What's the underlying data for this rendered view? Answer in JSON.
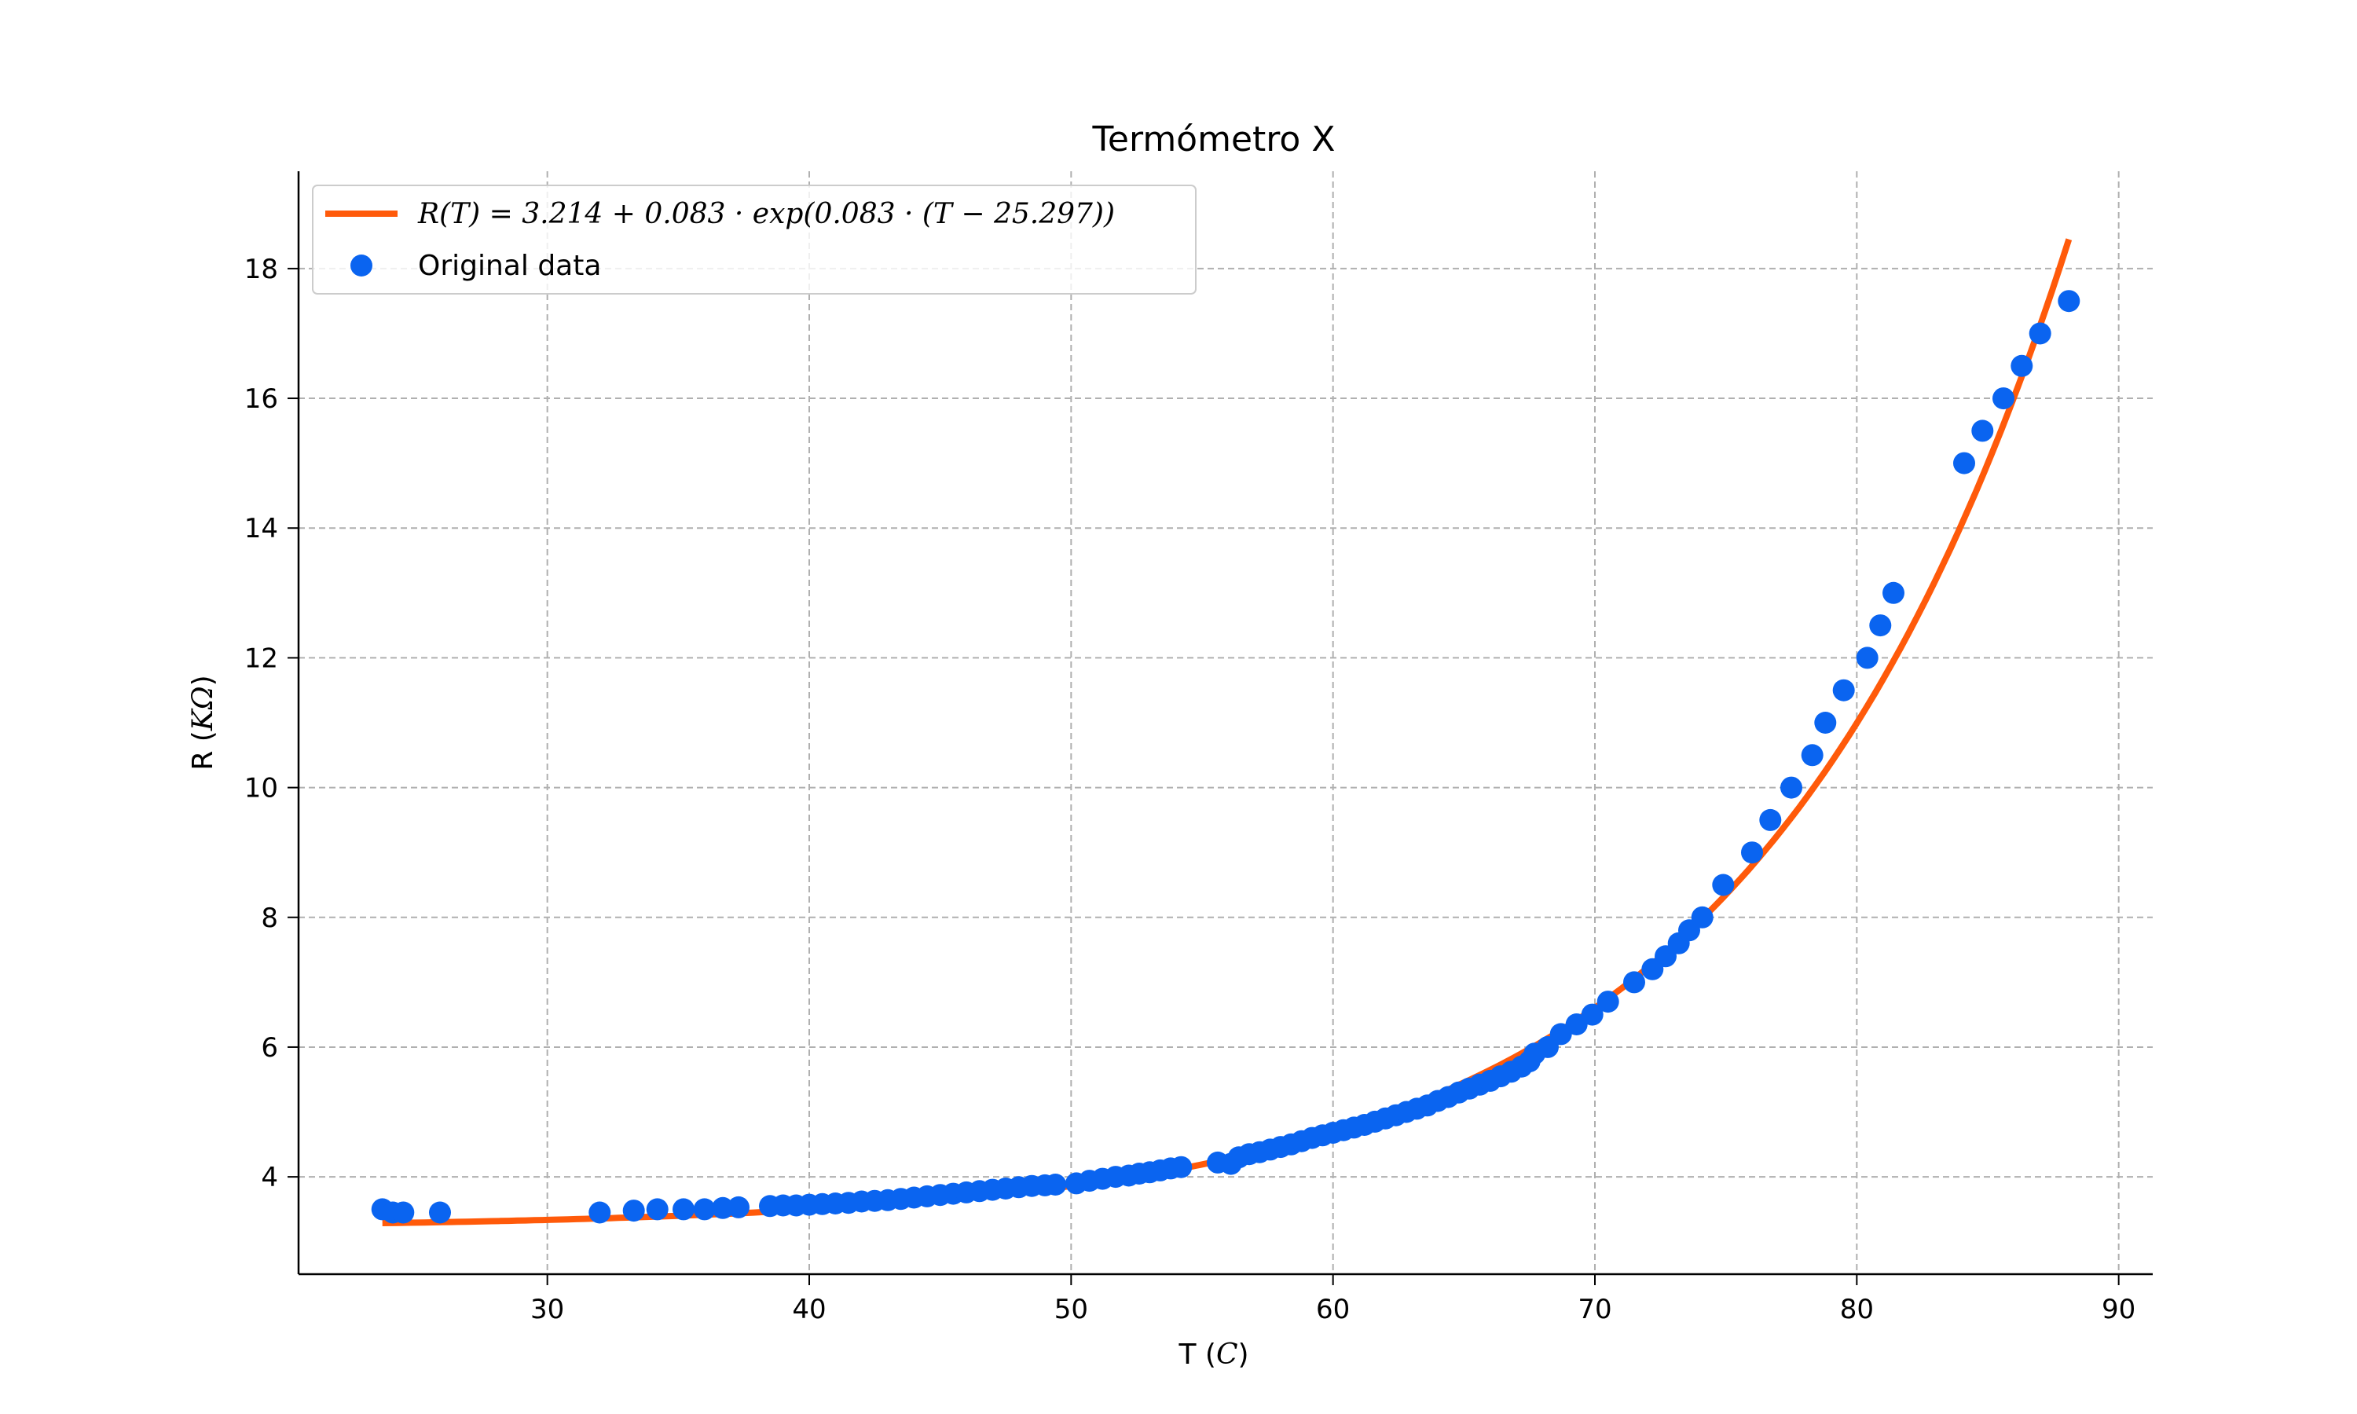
{
  "chart_data": {
    "type": "scatter",
    "title": "Termómetro X",
    "xlabel_text": "T (",
    "xlabel_unit": "C",
    "xlabel_close": ")",
    "ylabel_text": "R (",
    "ylabel_unit": "KΩ",
    "ylabel_close": ")",
    "xlim": [
      20.5,
      91.3
    ],
    "ylim": [
      2.5,
      19.5
    ],
    "xticks": [
      30,
      40,
      50,
      60,
      70,
      80,
      90
    ],
    "yticks": [
      4,
      6,
      8,
      10,
      12,
      14,
      16,
      18
    ],
    "grid": true,
    "legend_position": "top-left",
    "colors": {
      "fit": "#ff5a0a",
      "data": "#0a64f0",
      "grid": "#b0b0b0"
    },
    "fit": {
      "name": "R(T) = 3.214 + 0.083 · exp(0.083 · (T − 25.297))",
      "a": 3.214,
      "b": 0.083,
      "k": 0.083,
      "t0": 25.297,
      "x_range": [
        23.7,
        88.1
      ]
    },
    "series": [
      {
        "name": "Original data",
        "points": [
          [
            23.7,
            3.5
          ],
          [
            24.1,
            3.45
          ],
          [
            24.5,
            3.45
          ],
          [
            25.9,
            3.45
          ],
          [
            32.0,
            3.45
          ],
          [
            33.3,
            3.48
          ],
          [
            34.2,
            3.5
          ],
          [
            35.2,
            3.5
          ],
          [
            36.0,
            3.5
          ],
          [
            36.7,
            3.52
          ],
          [
            37.3,
            3.53
          ],
          [
            38.5,
            3.55
          ],
          [
            39.0,
            3.56
          ],
          [
            39.5,
            3.56
          ],
          [
            40.0,
            3.57
          ],
          [
            40.5,
            3.58
          ],
          [
            41.0,
            3.59
          ],
          [
            41.5,
            3.6
          ],
          [
            42.0,
            3.62
          ],
          [
            42.5,
            3.63
          ],
          [
            43.0,
            3.64
          ],
          [
            43.5,
            3.66
          ],
          [
            44.0,
            3.68
          ],
          [
            44.5,
            3.7
          ],
          [
            45.0,
            3.72
          ],
          [
            45.5,
            3.74
          ],
          [
            46.0,
            3.76
          ],
          [
            46.5,
            3.78
          ],
          [
            47.0,
            3.8
          ],
          [
            47.5,
            3.82
          ],
          [
            48.0,
            3.84
          ],
          [
            48.5,
            3.86
          ],
          [
            49.0,
            3.87
          ],
          [
            49.4,
            3.88
          ],
          [
            50.2,
            3.9
          ],
          [
            50.7,
            3.94
          ],
          [
            51.2,
            3.97
          ],
          [
            51.7,
            4.0
          ],
          [
            52.2,
            4.02
          ],
          [
            52.6,
            4.05
          ],
          [
            53.0,
            4.07
          ],
          [
            53.4,
            4.1
          ],
          [
            53.8,
            4.13
          ],
          [
            54.2,
            4.15
          ],
          [
            55.6,
            4.22
          ],
          [
            56.1,
            4.2
          ],
          [
            56.4,
            4.3
          ],
          [
            56.8,
            4.35
          ],
          [
            57.2,
            4.38
          ],
          [
            57.6,
            4.42
          ],
          [
            58.0,
            4.46
          ],
          [
            58.4,
            4.5
          ],
          [
            58.8,
            4.55
          ],
          [
            59.2,
            4.6
          ],
          [
            59.6,
            4.64
          ],
          [
            60.0,
            4.68
          ],
          [
            60.4,
            4.72
          ],
          [
            60.8,
            4.76
          ],
          [
            61.2,
            4.8
          ],
          [
            61.6,
            4.85
          ],
          [
            62.0,
            4.9
          ],
          [
            62.4,
            4.95
          ],
          [
            62.8,
            5.0
          ],
          [
            63.2,
            5.05
          ],
          [
            63.6,
            5.1
          ],
          [
            64.0,
            5.17
          ],
          [
            64.4,
            5.23
          ],
          [
            64.8,
            5.3
          ],
          [
            65.2,
            5.36
          ],
          [
            65.6,
            5.42
          ],
          [
            66.0,
            5.48
          ],
          [
            66.4,
            5.55
          ],
          [
            66.8,
            5.62
          ],
          [
            67.2,
            5.7
          ],
          [
            67.5,
            5.78
          ],
          [
            67.7,
            5.9
          ],
          [
            68.2,
            6.0
          ],
          [
            68.7,
            6.2
          ],
          [
            69.3,
            6.35
          ],
          [
            69.9,
            6.5
          ],
          [
            70.5,
            6.7
          ],
          [
            71.5,
            7.0
          ],
          [
            72.2,
            7.2
          ],
          [
            72.7,
            7.4
          ],
          [
            73.2,
            7.6
          ],
          [
            73.6,
            7.8
          ],
          [
            74.1,
            8.0
          ],
          [
            74.9,
            8.5
          ],
          [
            76.0,
            9.0
          ],
          [
            76.7,
            9.5
          ],
          [
            77.5,
            10.0
          ],
          [
            78.3,
            10.5
          ],
          [
            78.8,
            11.0
          ],
          [
            79.5,
            11.5
          ],
          [
            80.4,
            12.0
          ],
          [
            80.9,
            12.5
          ],
          [
            81.4,
            13.0
          ],
          [
            84.1,
            15.0
          ],
          [
            84.8,
            15.5
          ],
          [
            85.6,
            16.0
          ],
          [
            86.3,
            16.5
          ],
          [
            87.0,
            17.0
          ],
          [
            88.1,
            17.5
          ]
        ]
      }
    ]
  }
}
